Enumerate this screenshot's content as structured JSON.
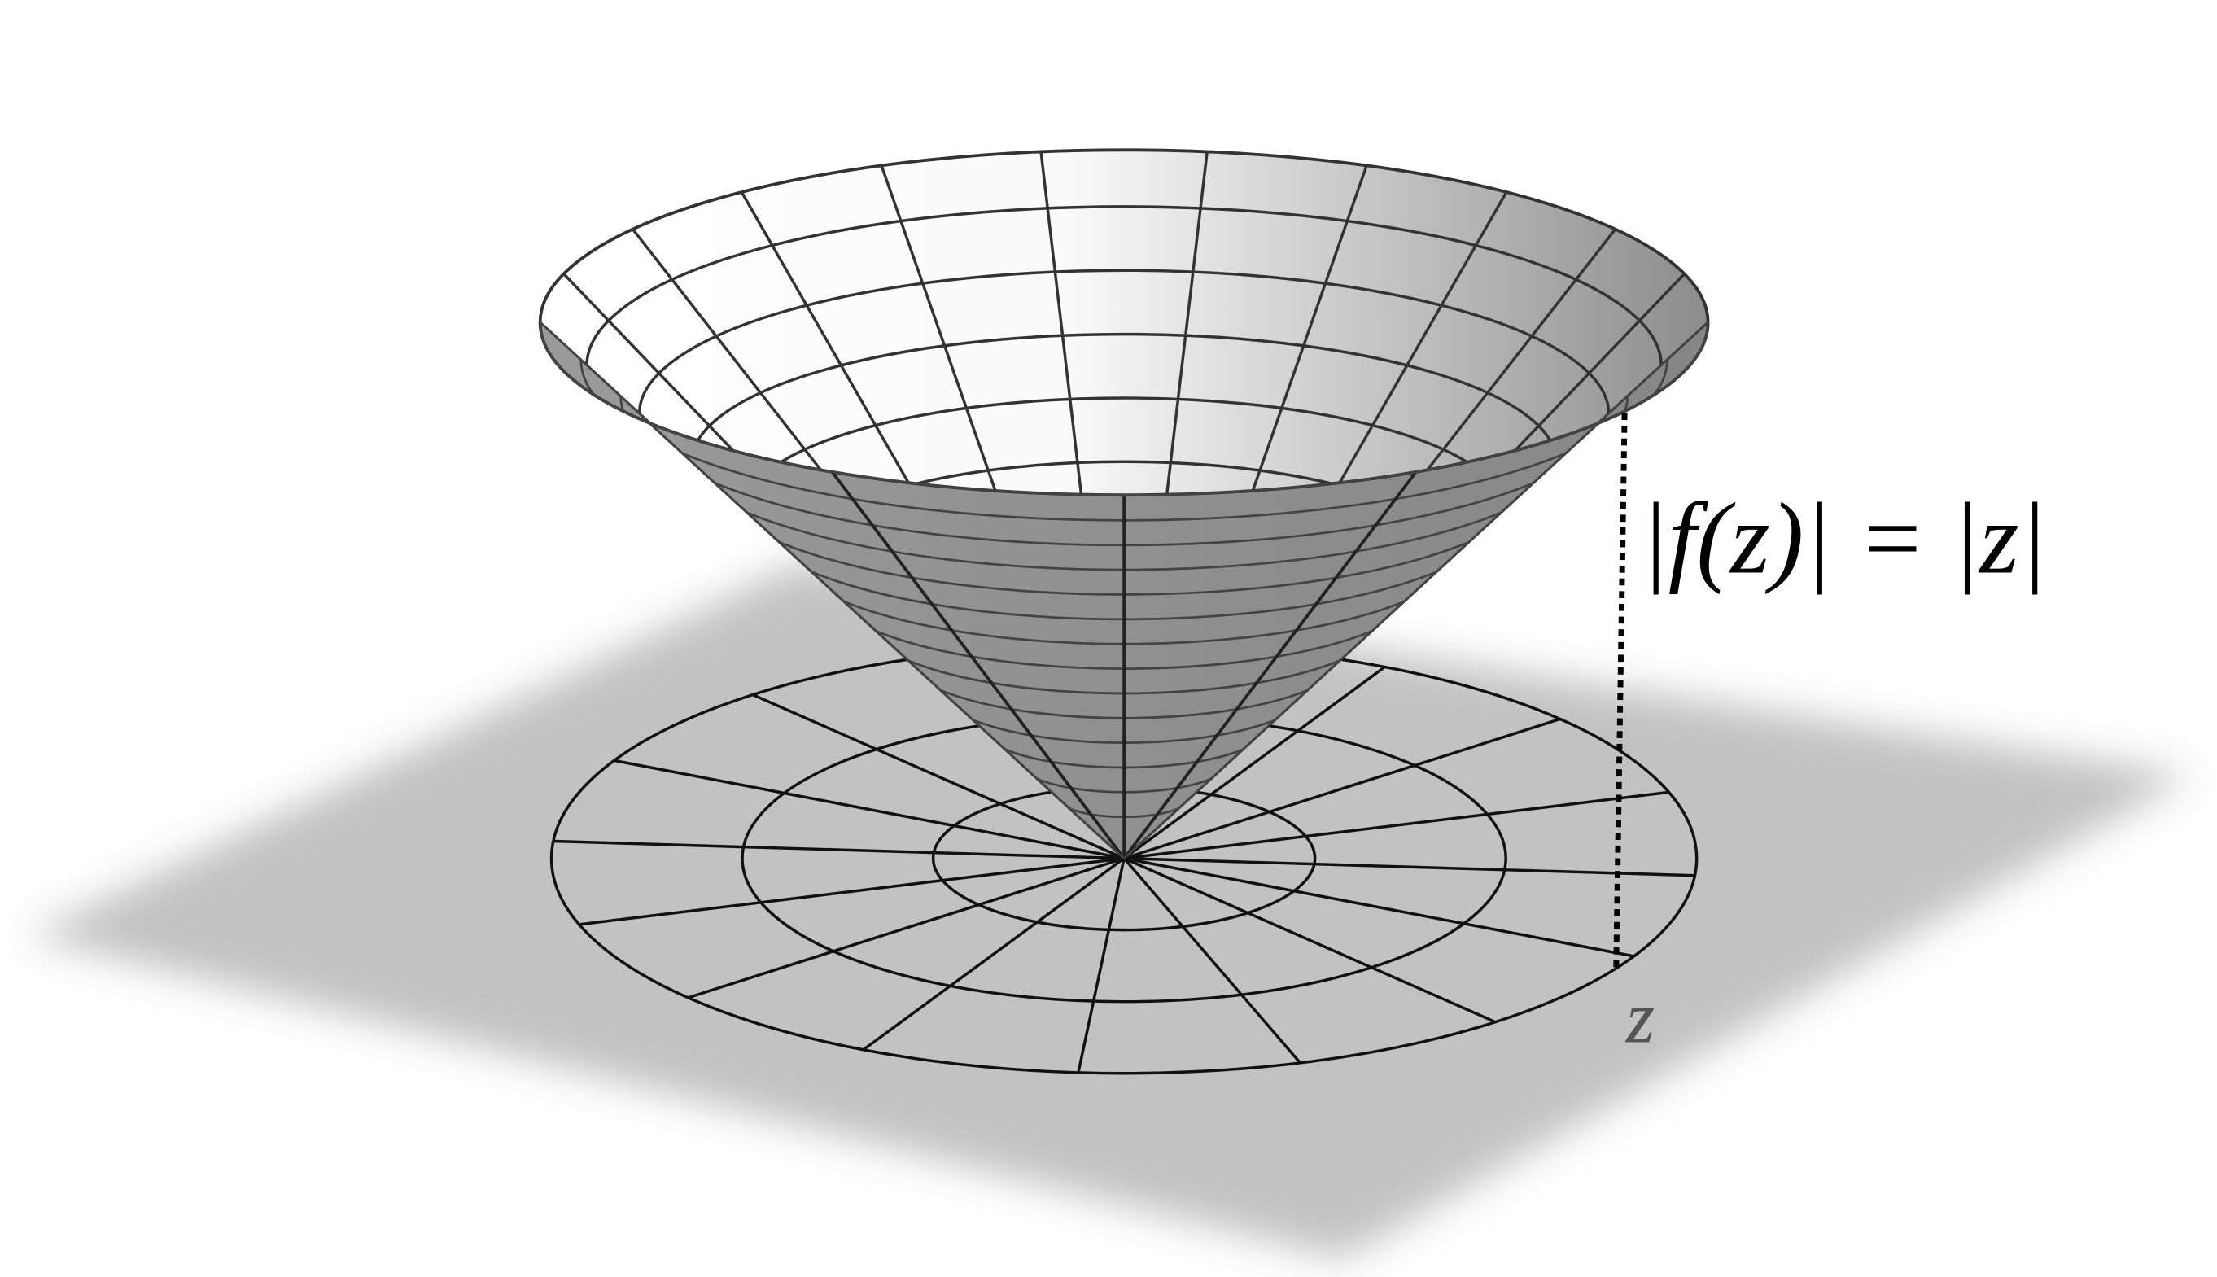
{
  "labels": {
    "modulus": "|f(z)| = |z|",
    "point": "z"
  }
}
